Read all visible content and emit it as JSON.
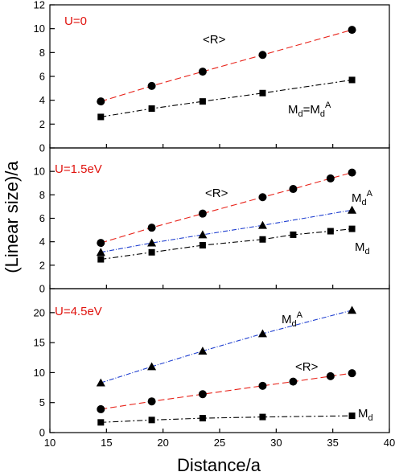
{
  "chart_data": [
    {
      "type": "line",
      "title": "U=0",
      "xlim": [
        10,
        40
      ],
      "ylim": [
        0,
        12
      ],
      "yticks": [
        0,
        2,
        4,
        6,
        8,
        10,
        12
      ],
      "series": [
        {
          "name": "<R>",
          "label": "<R>",
          "marker": "circle",
          "color": "#e8231a",
          "dash": "8,4",
          "x": [
            14.5,
            19,
            23.5,
            28.8,
            36.7
          ],
          "values": [
            3.9,
            5.2,
            6.4,
            7.8,
            9.9
          ]
        },
        {
          "name": "Md=Md^A",
          "label": "M",
          "label_sub": "d",
          "label_mid": "=M",
          "label_sub2": "d",
          "label_sup": "A",
          "marker": "square",
          "color": "#000000",
          "dash": "7,3,2,3",
          "x": [
            14.5,
            19,
            23.5,
            28.8,
            36.7
          ],
          "values": [
            2.6,
            3.3,
            3.9,
            4.6,
            5.7
          ]
        }
      ]
    },
    {
      "type": "line",
      "title": "U=1.5eV",
      "xlim": [
        10,
        40
      ],
      "ylim": [
        0,
        12
      ],
      "yticks": [
        0,
        2,
        4,
        6,
        8,
        10
      ],
      "series": [
        {
          "name": "<R>",
          "label": "<R>",
          "marker": "circle",
          "color": "#e8231a",
          "dash": "8,4",
          "x": [
            14.5,
            19,
            23.5,
            28.8,
            31.5,
            34.8,
            36.7
          ],
          "values": [
            3.9,
            5.2,
            6.4,
            7.8,
            8.5,
            9.4,
            9.9
          ]
        },
        {
          "name": "Md^A",
          "label": "M",
          "label_sub": "d",
          "label_sup": "A",
          "marker": "triangle",
          "color": "#1f3fd0",
          "dash": "6,2,1,2",
          "x": [
            14.5,
            19,
            23.5,
            28.8,
            36.7
          ],
          "values": [
            3.1,
            3.9,
            4.6,
            5.4,
            6.7
          ]
        },
        {
          "name": "Md",
          "label": "M",
          "label_sub": "d",
          "marker": "square",
          "color": "#000000",
          "dash": "7,3,2,3",
          "x": [
            14.5,
            19,
            23.5,
            28.8,
            31.5,
            34.8,
            36.7
          ],
          "values": [
            2.5,
            3.1,
            3.7,
            4.2,
            4.6,
            4.9,
            5.1
          ]
        }
      ]
    },
    {
      "type": "line",
      "title": "U=4.5eV",
      "xlim": [
        10,
        40
      ],
      "ylim": [
        0,
        24
      ],
      "yticks": [
        0,
        5,
        10,
        15,
        20
      ],
      "xticks": [
        10,
        15,
        20,
        25,
        30,
        35,
        40
      ],
      "xlabel": "Distance/a",
      "series": [
        {
          "name": "Md^A",
          "label": "M",
          "label_sub": "d",
          "label_sup": "A",
          "marker": "triangle",
          "color": "#1f3fd0",
          "dash": "6,2,1,2",
          "x": [
            14.5,
            19,
            23.5,
            28.8,
            36.7
          ],
          "values": [
            8.3,
            11.0,
            13.6,
            16.5,
            20.4
          ]
        },
        {
          "name": "<R>",
          "label": "<R>",
          "marker": "circle",
          "color": "#e8231a",
          "dash": "8,4",
          "x": [
            14.5,
            19,
            23.5,
            28.8,
            31.5,
            34.8,
            36.7
          ],
          "values": [
            3.9,
            5.2,
            6.4,
            7.8,
            8.5,
            9.4,
            9.9
          ]
        },
        {
          "name": "Md",
          "label": "M",
          "label_sub": "d",
          "marker": "square",
          "color": "#000000",
          "dash": "7,3,2,3",
          "x": [
            14.5,
            19,
            23.5,
            28.8,
            36.7
          ],
          "values": [
            1.7,
            2.1,
            2.4,
            2.6,
            2.8
          ]
        }
      ]
    }
  ],
  "ylabel": "(Linear size)/a",
  "colors": {
    "title": "#e0140f",
    "axis": "#000000"
  }
}
